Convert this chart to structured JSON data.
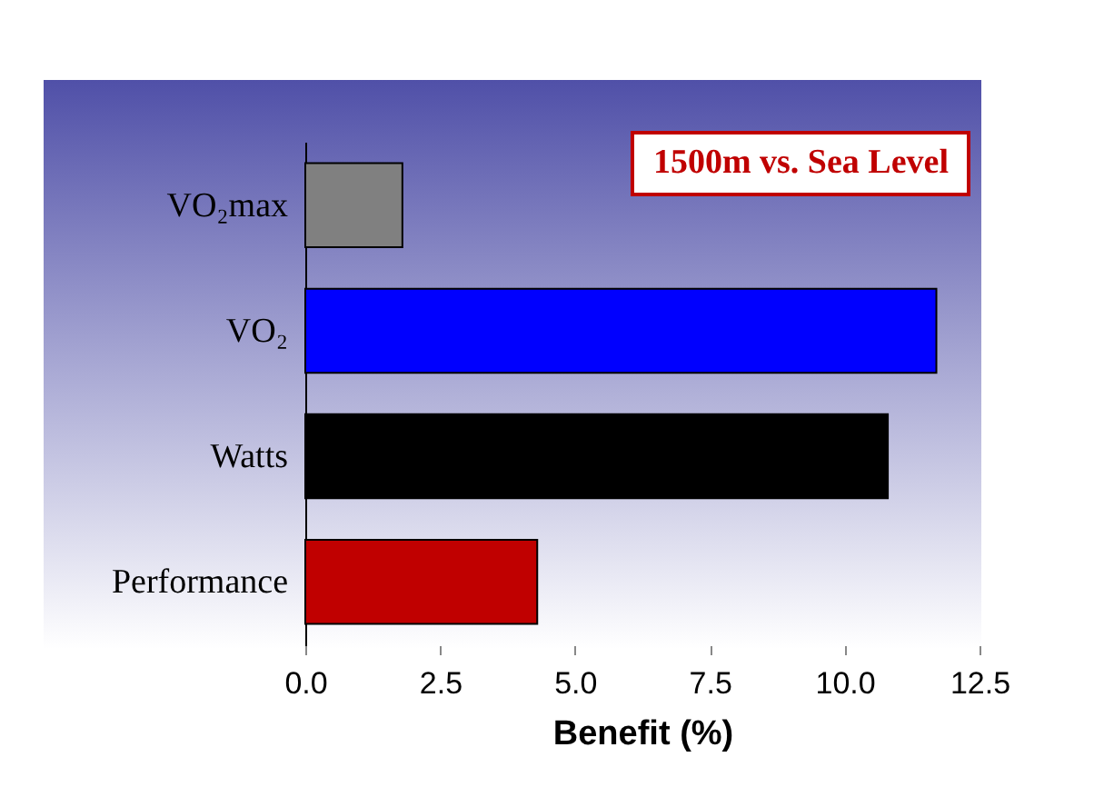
{
  "chart_data": {
    "type": "bar",
    "orientation": "horizontal",
    "categories": [
      "VO₂max",
      "VO₂",
      "Watts",
      "Performance"
    ],
    "values": [
      1.8,
      11.7,
      10.8,
      4.3
    ],
    "colors": [
      "#808080",
      "#0000ff",
      "#000000",
      "#c00000"
    ],
    "xlim": [
      0,
      12.5
    ],
    "xticks": [
      {
        "value": 0,
        "label": "0.0"
      },
      2.5,
      {
        "value": 5,
        "label": "5.0"
      },
      7.5,
      {
        "value": 10,
        "label": "10.0"
      },
      12.5
    ],
    "xlabel": "Benefit (%)",
    "annotations": [
      "1500m vs. Sea Level"
    ],
    "grid": false
  }
}
